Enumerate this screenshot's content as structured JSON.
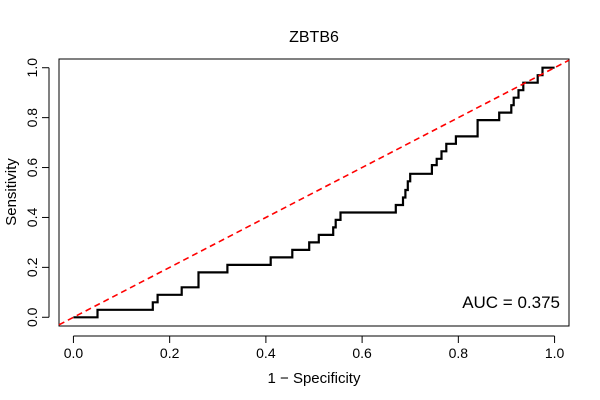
{
  "chart_data": {
    "type": "line",
    "title": "ZBTB6",
    "xlabel": "1 − Specificity",
    "ylabel": "Sensitivity",
    "xlim": [
      -0.03,
      1.03
    ],
    "ylim": [
      -0.035,
      1.035
    ],
    "x_ticks": [
      0.0,
      0.2,
      0.4,
      0.6,
      0.8,
      1.0
    ],
    "x_tick_labels": [
      "0.0",
      "0.2",
      "0.4",
      "0.6",
      "0.8",
      "1.0"
    ],
    "y_ticks": [
      0.0,
      0.2,
      0.4,
      0.6,
      0.8,
      1.0
    ],
    "y_tick_labels": [
      "0.0",
      "0.2",
      "0.4",
      "0.6",
      "0.8",
      "1.0"
    ],
    "annotation": "AUC = 0.375",
    "grid": false,
    "series": [
      {
        "name": "ROC curve",
        "color": "#000000",
        "style": "solid",
        "x": [
          0.0,
          0.05,
          0.05,
          0.165,
          0.165,
          0.175,
          0.175,
          0.225,
          0.225,
          0.26,
          0.26,
          0.32,
          0.32,
          0.41,
          0.41,
          0.455,
          0.455,
          0.49,
          0.49,
          0.51,
          0.51,
          0.54,
          0.54,
          0.545,
          0.545,
          0.555,
          0.555,
          0.62,
          0.62,
          0.67,
          0.67,
          0.685,
          0.685,
          0.69,
          0.69,
          0.695,
          0.695,
          0.7,
          0.7,
          0.745,
          0.745,
          0.755,
          0.755,
          0.765,
          0.765,
          0.775,
          0.775,
          0.795,
          0.795,
          0.84,
          0.84,
          0.885,
          0.885,
          0.91,
          0.91,
          0.915,
          0.915,
          0.925,
          0.925,
          0.935,
          0.935,
          0.94,
          0.94,
          0.965,
          0.965,
          0.975,
          0.975,
          0.98,
          0.98,
          1.0
        ],
        "y": [
          0.0,
          0.0,
          0.03,
          0.03,
          0.06,
          0.06,
          0.09,
          0.09,
          0.12,
          0.12,
          0.18,
          0.18,
          0.21,
          0.21,
          0.24,
          0.24,
          0.27,
          0.27,
          0.3,
          0.3,
          0.33,
          0.33,
          0.36,
          0.36,
          0.39,
          0.39,
          0.42,
          0.42,
          0.42,
          0.42,
          0.45,
          0.45,
          0.48,
          0.48,
          0.51,
          0.51,
          0.545,
          0.545,
          0.575,
          0.575,
          0.61,
          0.61,
          0.635,
          0.635,
          0.665,
          0.665,
          0.695,
          0.695,
          0.725,
          0.725,
          0.79,
          0.79,
          0.82,
          0.82,
          0.85,
          0.85,
          0.88,
          0.88,
          0.91,
          0.91,
          0.94,
          0.94,
          0.94,
          0.94,
          0.97,
          0.97,
          1.0,
          1.0,
          1.0,
          1.0
        ]
      },
      {
        "name": "reference diagonal",
        "color": "#ff0000",
        "style": "dashed",
        "x": [
          -0.03,
          1.03
        ],
        "y": [
          -0.03,
          1.03
        ]
      }
    ]
  }
}
